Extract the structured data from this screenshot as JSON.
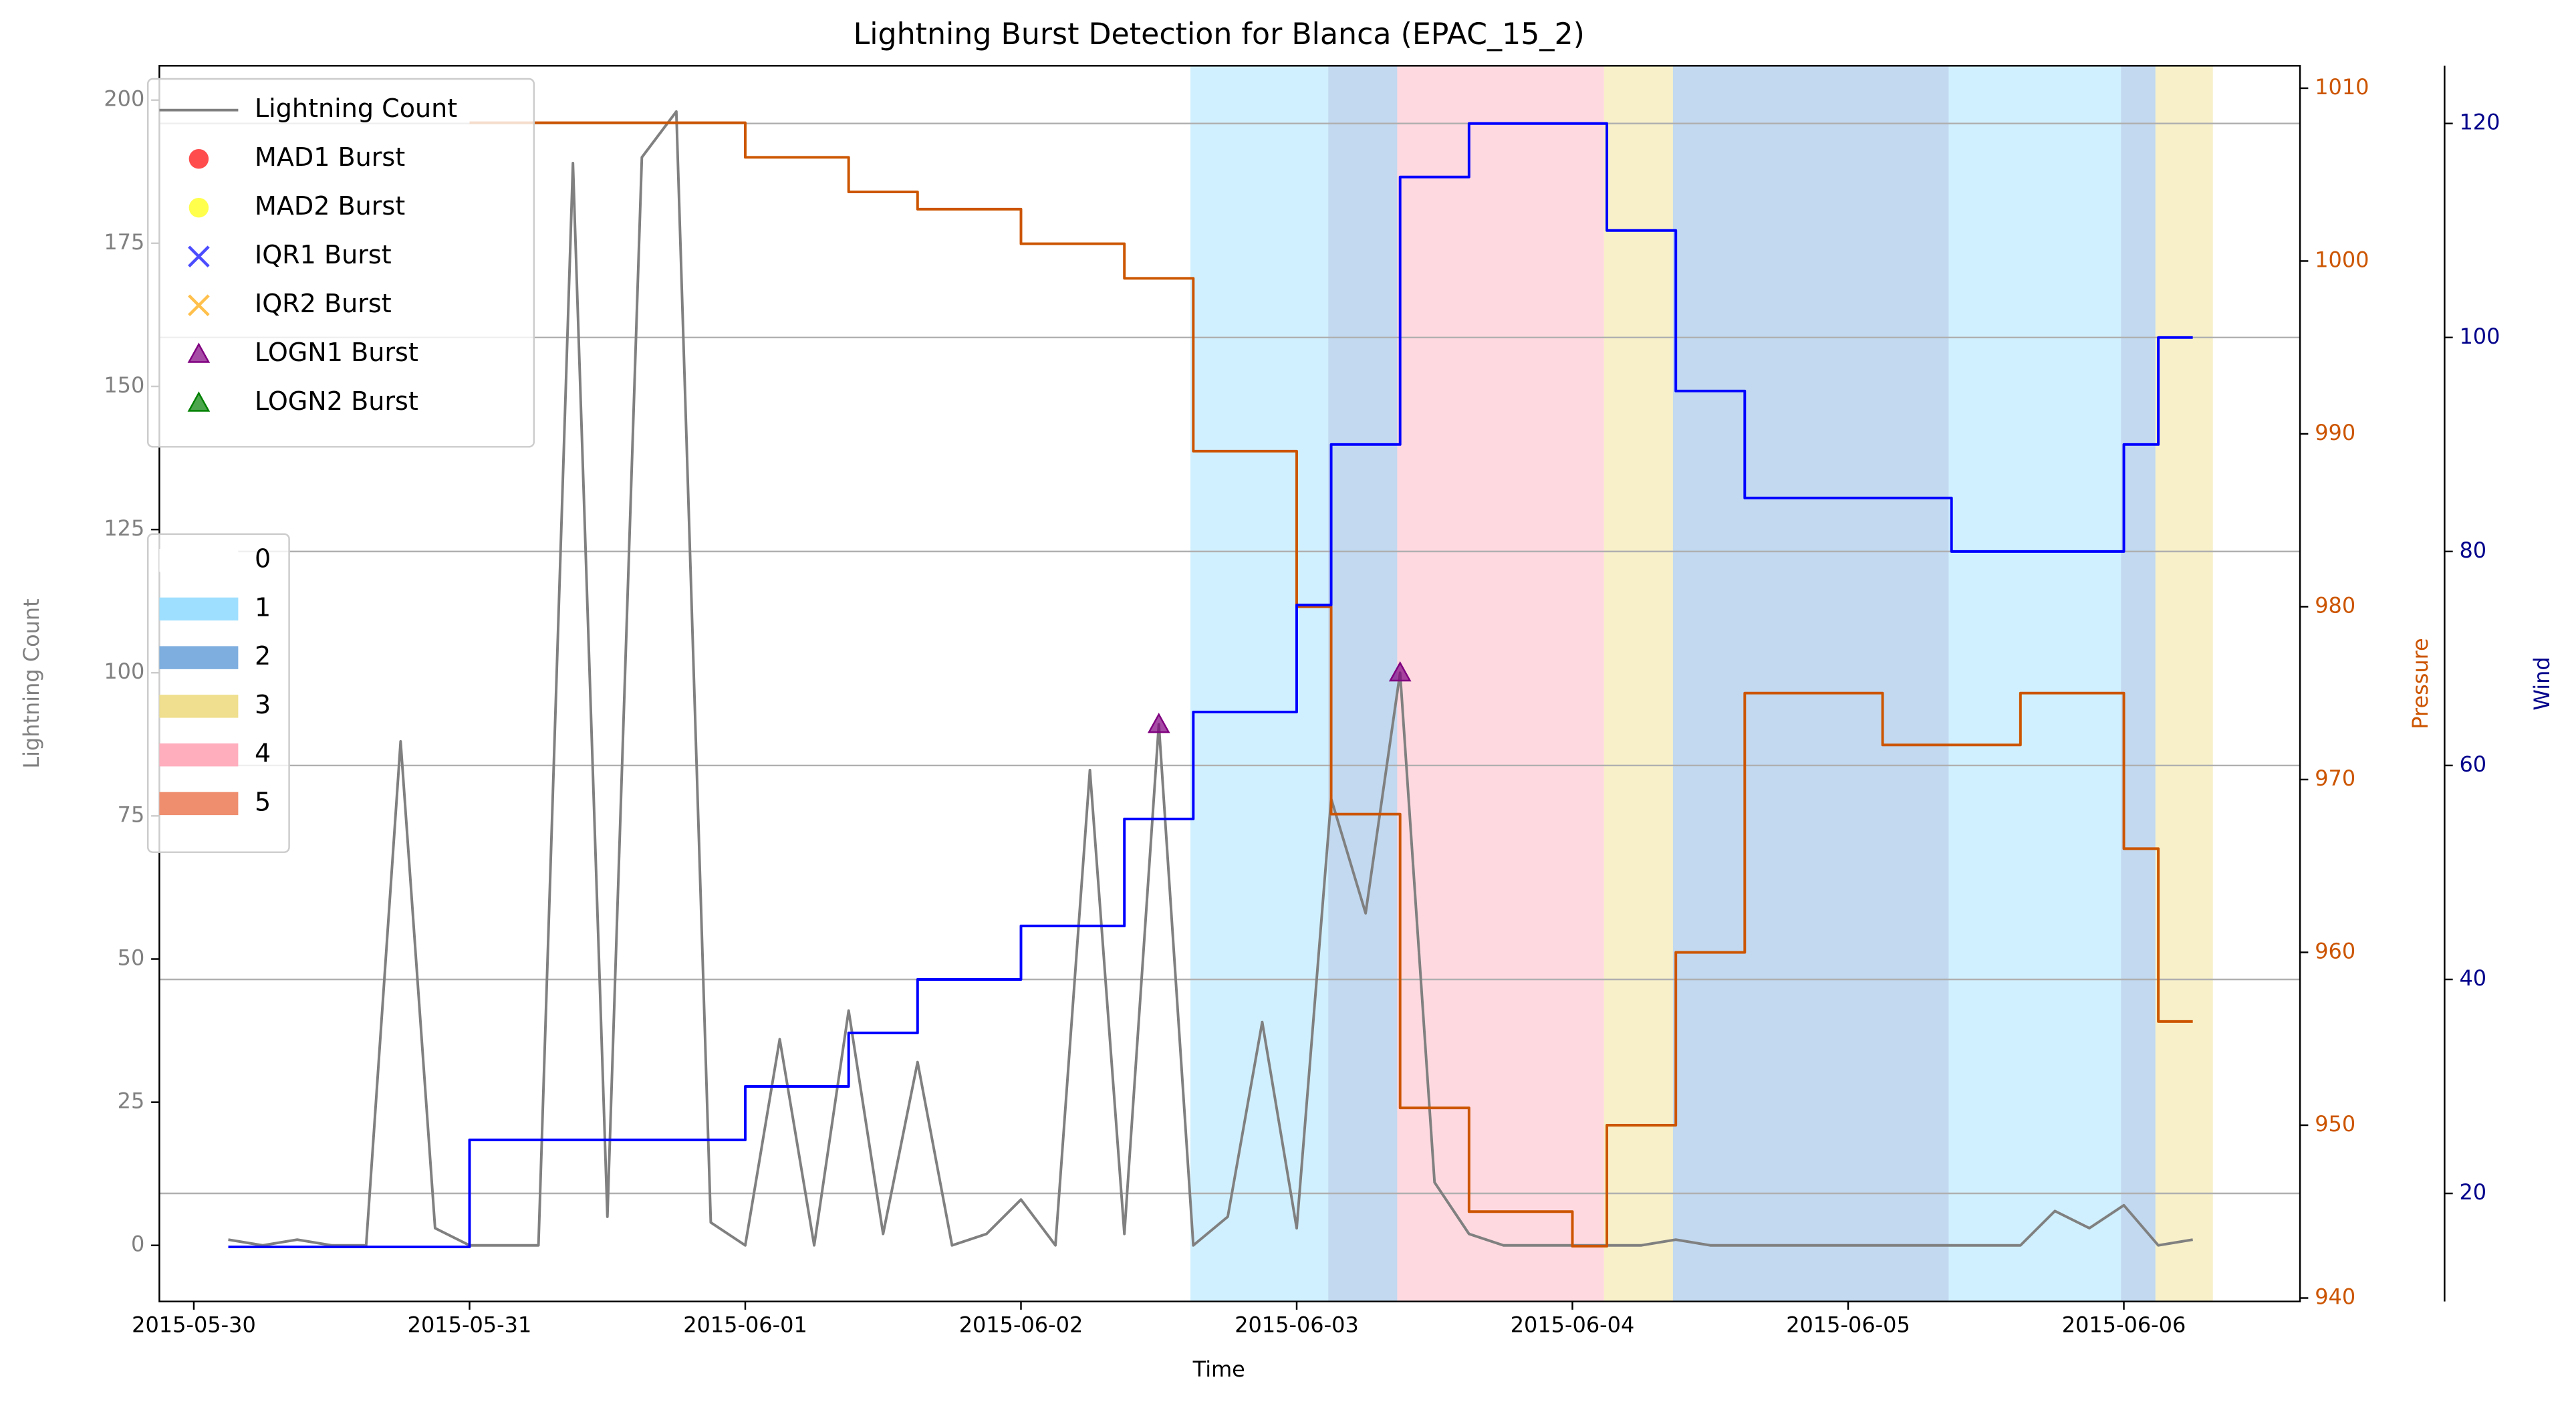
{
  "chart_data": {
    "type": "line",
    "title": "Lightning Burst Detection for Blanca (EPAC_15_2)",
    "x_label": "Time",
    "y_label": "Lightning Count",
    "y2_label": "Pressure",
    "y3_label": "Wind",
    "x": [
      "2015-05-30 03:00",
      "2015-05-30 06:00",
      "2015-05-30 09:00",
      "2015-05-30 12:00",
      "2015-05-30 15:00",
      "2015-05-30 18:00",
      "2015-05-30 21:00",
      "2015-05-31 00:00",
      "2015-05-31 03:00",
      "2015-05-31 06:00",
      "2015-05-31 09:00",
      "2015-05-31 12:00",
      "2015-05-31 15:00",
      "2015-05-31 18:00",
      "2015-05-31 21:00",
      "2015-06-01 00:00",
      "2015-06-01 03:00",
      "2015-06-01 06:00",
      "2015-06-01 09:00",
      "2015-06-01 12:00",
      "2015-06-01 15:00",
      "2015-06-01 18:00",
      "2015-06-01 21:00",
      "2015-06-02 00:00",
      "2015-06-02 03:00",
      "2015-06-02 06:00",
      "2015-06-02 09:00",
      "2015-06-02 12:00",
      "2015-06-02 15:00",
      "2015-06-02 18:00",
      "2015-06-02 21:00",
      "2015-06-03 00:00",
      "2015-06-03 03:00",
      "2015-06-03 06:00",
      "2015-06-03 09:00",
      "2015-06-03 12:00",
      "2015-06-03 15:00",
      "2015-06-03 18:00",
      "2015-06-03 21:00",
      "2015-06-04 00:00",
      "2015-06-04 03:00",
      "2015-06-04 06:00",
      "2015-06-04 09:00",
      "2015-06-04 12:00",
      "2015-06-04 15:00",
      "2015-06-04 18:00",
      "2015-06-04 21:00",
      "2015-06-05 00:00",
      "2015-06-05 03:00",
      "2015-06-05 06:00",
      "2015-06-05 09:00",
      "2015-06-05 12:00",
      "2015-06-05 15:00",
      "2015-06-05 18:00",
      "2015-06-05 21:00",
      "2015-06-06 00:00",
      "2015-06-06 03:00",
      "2015-06-06 06:00"
    ],
    "xlim": [
      "2015-05-29 21:00",
      "2015-06-06 15:20"
    ],
    "xticks": [
      "2015-05-30",
      "2015-05-31",
      "2015-06-01",
      "2015-06-02",
      "2015-06-03",
      "2015-06-04",
      "2015-06-05",
      "2015-06-06"
    ],
    "ylim": [
      -9.8,
      206
    ],
    "yticks": [
      0,
      25,
      50,
      75,
      100,
      125,
      150,
      175,
      200
    ],
    "y2lim": [
      939.8,
      1011.3
    ],
    "y2ticks": [
      940,
      950,
      960,
      970,
      980,
      990,
      1000,
      1010
    ],
    "y3lim": [
      9.9,
      125.4
    ],
    "y3ticks": [
      20,
      40,
      60,
      80,
      100,
      120
    ],
    "grid": true,
    "grid_axis": "y3",
    "series": [
      {
        "name": "Lightning Count",
        "color": "#808080",
        "values": [
          1,
          0,
          1,
          0,
          0,
          88,
          3,
          0,
          0,
          0,
          189,
          5,
          190,
          198,
          4,
          0,
          36,
          0,
          41,
          2,
          32,
          0,
          2,
          8,
          0,
          83,
          2,
          91,
          0,
          5,
          39,
          3,
          78,
          58,
          100,
          11,
          2,
          0,
          0,
          0,
          0,
          0,
          1,
          0,
          0,
          0,
          0,
          0,
          0,
          0,
          0,
          0,
          0,
          6,
          3,
          7,
          0,
          1
        ]
      },
      {
        "axis": "y2",
        "color": "#cc5500",
        "drawstyle": "steps-post",
        "values": [
          null,
          null,
          null,
          null,
          null,
          null,
          null,
          1008,
          1008,
          1008,
          1008,
          1008,
          1008,
          1008,
          1008,
          1006,
          1006,
          1006,
          1004,
          1004,
          1003,
          1003,
          1003,
          1001,
          1001,
          1001,
          999,
          999,
          989,
          989,
          989,
          980,
          968,
          968,
          951,
          951,
          945,
          945,
          945,
          943,
          950,
          950,
          960,
          960,
          975,
          975,
          975,
          975,
          972,
          972,
          972,
          972,
          975,
          975,
          975,
          966,
          956,
          956
        ]
      },
      {
        "axis": "y3",
        "color": "#0000ff",
        "drawstyle": "steps-post",
        "values": [
          15,
          15,
          15,
          15,
          15,
          15,
          15,
          25,
          25,
          25,
          25,
          25,
          25,
          25,
          25,
          30,
          30,
          30,
          35,
          35,
          40,
          40,
          40,
          45,
          45,
          45,
          55,
          55,
          65,
          65,
          65,
          75,
          90,
          90,
          115,
          115,
          120,
          120,
          120,
          120,
          110,
          110,
          95,
          95,
          85,
          85,
          85,
          85,
          85,
          85,
          80,
          80,
          80,
          80,
          80,
          90,
          100,
          100
        ]
      }
    ],
    "bursts": [
      {
        "name": "MAD1 Burst",
        "color": "#ff0000",
        "marker": "o",
        "x": [],
        "values": []
      },
      {
        "name": "MAD2 Burst",
        "color": "#ffff00",
        "marker": "o",
        "x": [],
        "values": []
      },
      {
        "name": "IQR1 Burst",
        "color": "#0000ff",
        "marker": "x",
        "x": [],
        "values": []
      },
      {
        "name": "IQR2 Burst",
        "color": "#ffa500",
        "marker": "x",
        "x": [],
        "values": []
      },
      {
        "name": "LOGN1 Burst",
        "color": "#800080",
        "marker": "^",
        "x": [
          "2015-06-02 12:00",
          "2015-06-03 09:00"
        ],
        "values": [
          91,
          100
        ]
      },
      {
        "name": "LOGN2 Burst",
        "color": "#008000",
        "marker": "^",
        "x": [],
        "values": []
      }
    ],
    "regimes": [
      {
        "name": "0",
        "color": "#ffffff"
      },
      {
        "name": "1",
        "color": "#99ddff"
      },
      {
        "name": "2",
        "color": "#77aadd"
      },
      {
        "name": "3",
        "color": "#eedd88"
      },
      {
        "name": "4",
        "color": "#ffaabb"
      },
      {
        "name": "5",
        "color": "#ee8866"
      }
    ],
    "spans": [
      {
        "start": "2015-06-02 14:45",
        "end": "2015-06-03 02:45",
        "regime": "1"
      },
      {
        "start": "2015-06-03 02:45",
        "end": "2015-06-03 08:45",
        "regime": "2"
      },
      {
        "start": "2015-06-03 08:45",
        "end": "2015-06-04 02:45",
        "regime": "4"
      },
      {
        "start": "2015-06-04 02:45",
        "end": "2015-06-04 08:45",
        "regime": "3"
      },
      {
        "start": "2015-06-04 08:45",
        "end": "2015-06-05 08:45",
        "regime": "2"
      },
      {
        "start": "2015-06-05 08:45",
        "end": "2015-06-05 23:45",
        "regime": "1"
      },
      {
        "start": "2015-06-05 23:45",
        "end": "2015-06-06 02:45",
        "regime": "2"
      },
      {
        "start": "2015-06-06 02:45",
        "end": "2015-06-06 07:45",
        "regime": "3"
      }
    ]
  }
}
